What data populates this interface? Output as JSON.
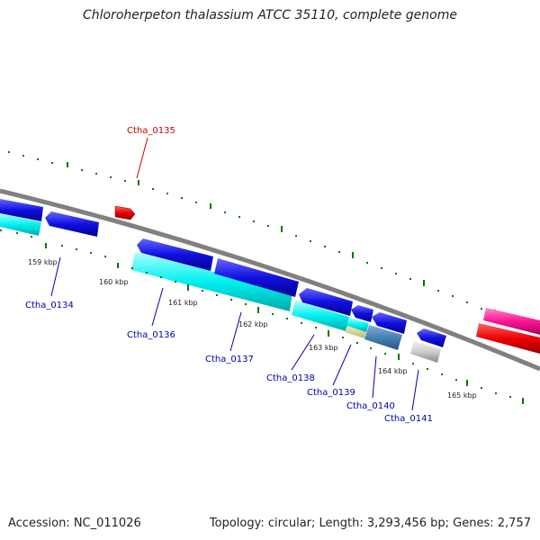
{
  "header": {
    "title": "Chloroherpeton thalassium ATCC 35110, complete genome"
  },
  "footer": {
    "accession": "Accession: NC_011026",
    "summary": "Topology: circular; Length: 3,293,456 bp; Genes: 2,757"
  },
  "scale": {
    "ticks": [
      "159 kbp",
      "160 kbp",
      "161 kbp",
      "162 kbp",
      "163 kbp",
      "164 kbp",
      "165 kbp"
    ]
  },
  "genes": [
    {
      "id": "Ctha_0134",
      "color": "#0000aa"
    },
    {
      "id": "Ctha_0135",
      "color": "#cc0000"
    },
    {
      "id": "Ctha_0136",
      "color": "#0000aa"
    },
    {
      "id": "Ctha_0137",
      "color": "#0000aa"
    },
    {
      "id": "Ctha_0138",
      "color": "#0000aa"
    },
    {
      "id": "Ctha_0139",
      "color": "#0000aa"
    },
    {
      "id": "Ctha_0140",
      "color": "#0000aa"
    },
    {
      "id": "Ctha_0141",
      "color": "#0000aa"
    }
  ],
  "colors": {
    "backbone": "#808080",
    "cds_forward": "#0000ee",
    "cds_reverse": "#ee0000",
    "feature_cyan": "#00ffff",
    "feature_magenta": "#ff1493",
    "tick_green": "#007700"
  }
}
